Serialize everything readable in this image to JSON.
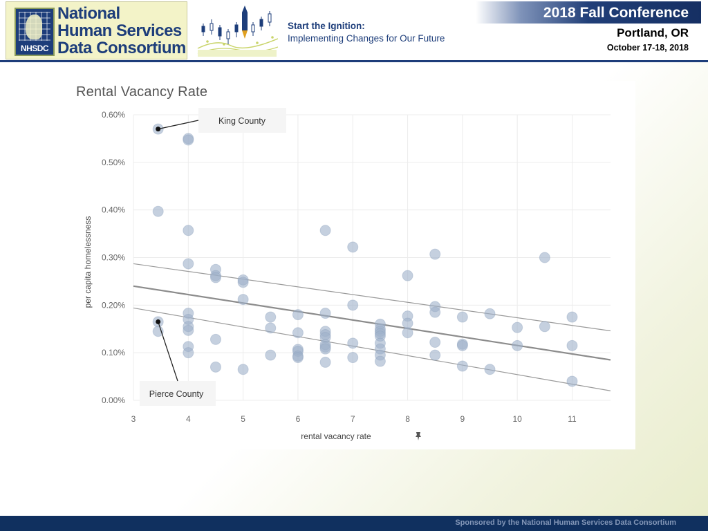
{
  "header": {
    "org_name_line1": "National",
    "org_name_line2": "Human Services",
    "org_name_line3": "Data Consortium",
    "org_abbr": "NHSDC",
    "theme_title": "Start the Ignition:",
    "theme_subtitle": "Implementing Changes for Our Future",
    "conference_title": "2018 Fall Conference",
    "conference_city": "Portland, OR",
    "conference_dates": "October 17-18, 2018"
  },
  "footer": {
    "sponsor_text": "Sponsored by the National Human Services Data Consortium"
  },
  "colors": {
    "brand_navy": "#1d3d7a",
    "logo_background": "#f3f3c8",
    "point_fill": "#9fb1c9",
    "trend_line": "#8c8c8c"
  },
  "chart_data": {
    "type": "scatter",
    "title": "Rental Vacancy Rate",
    "xlabel": "rental vacancy rate",
    "ylabel": "per capita homelessness",
    "x_ticks": [
      "3",
      "4",
      "5",
      "6",
      "7",
      "8",
      "9",
      "10",
      "11"
    ],
    "y_ticks": [
      "0.00%",
      "0.10%",
      "0.20%",
      "0.30%",
      "0.40%",
      "0.50%",
      "0.60%"
    ],
    "xlim": [
      3,
      11.7
    ],
    "ylim": [
      0,
      0.6
    ],
    "y_unit": "%",
    "grid": true,
    "annotations": [
      {
        "label": "King County",
        "x": 3.45,
        "y": 0.57
      },
      {
        "label": "Pierce County",
        "x": 3.45,
        "y": 0.165
      }
    ],
    "trend": {
      "line": [
        [
          3,
          0.24
        ],
        [
          11.7,
          0.085
        ]
      ],
      "upper_band": [
        [
          3,
          0.287
        ],
        [
          11.7,
          0.146
        ]
      ],
      "lower_band": [
        [
          3,
          0.194
        ],
        [
          11.7,
          0.02
        ]
      ]
    },
    "points": [
      {
        "x": 3.45,
        "y": 0.57
      },
      {
        "x": 3.45,
        "y": 0.397
      },
      {
        "x": 3.45,
        "y": 0.165
      },
      {
        "x": 3.45,
        "y": 0.145
      },
      {
        "x": 4,
        "y": 0.55
      },
      {
        "x": 4,
        "y": 0.547
      },
      {
        "x": 4,
        "y": 0.357
      },
      {
        "x": 4,
        "y": 0.287
      },
      {
        "x": 4,
        "y": 0.183
      },
      {
        "x": 4,
        "y": 0.17
      },
      {
        "x": 4,
        "y": 0.155
      },
      {
        "x": 4,
        "y": 0.147
      },
      {
        "x": 4,
        "y": 0.113
      },
      {
        "x": 4,
        "y": 0.1
      },
      {
        "x": 4.5,
        "y": 0.275
      },
      {
        "x": 4.5,
        "y": 0.262
      },
      {
        "x": 4.5,
        "y": 0.258
      },
      {
        "x": 4.5,
        "y": 0.128
      },
      {
        "x": 4.5,
        "y": 0.07
      },
      {
        "x": 5,
        "y": 0.253
      },
      {
        "x": 5,
        "y": 0.248
      },
      {
        "x": 5,
        "y": 0.212
      },
      {
        "x": 5,
        "y": 0.065
      },
      {
        "x": 5.5,
        "y": 0.175
      },
      {
        "x": 5.5,
        "y": 0.152
      },
      {
        "x": 5.5,
        "y": 0.095
      },
      {
        "x": 6,
        "y": 0.18
      },
      {
        "x": 6,
        "y": 0.142
      },
      {
        "x": 6,
        "y": 0.107
      },
      {
        "x": 6,
        "y": 0.103
      },
      {
        "x": 6,
        "y": 0.093
      },
      {
        "x": 6,
        "y": 0.09
      },
      {
        "x": 6.5,
        "y": 0.357
      },
      {
        "x": 6.5,
        "y": 0.183
      },
      {
        "x": 6.5,
        "y": 0.145
      },
      {
        "x": 6.5,
        "y": 0.138
      },
      {
        "x": 6.5,
        "y": 0.132
      },
      {
        "x": 6.5,
        "y": 0.117
      },
      {
        "x": 6.5,
        "y": 0.112
      },
      {
        "x": 6.5,
        "y": 0.108
      },
      {
        "x": 6.5,
        "y": 0.08
      },
      {
        "x": 7,
        "y": 0.322
      },
      {
        "x": 7,
        "y": 0.2
      },
      {
        "x": 7,
        "y": 0.12
      },
      {
        "x": 7,
        "y": 0.09
      },
      {
        "x": 7.5,
        "y": 0.16
      },
      {
        "x": 7.5,
        "y": 0.15
      },
      {
        "x": 7.5,
        "y": 0.145
      },
      {
        "x": 7.5,
        "y": 0.14
      },
      {
        "x": 7.5,
        "y": 0.135
      },
      {
        "x": 7.5,
        "y": 0.12
      },
      {
        "x": 7.5,
        "y": 0.108
      },
      {
        "x": 7.5,
        "y": 0.095
      },
      {
        "x": 7.5,
        "y": 0.082
      },
      {
        "x": 8,
        "y": 0.262
      },
      {
        "x": 8,
        "y": 0.177
      },
      {
        "x": 8,
        "y": 0.162
      },
      {
        "x": 8,
        "y": 0.142
      },
      {
        "x": 8.5,
        "y": 0.307
      },
      {
        "x": 8.5,
        "y": 0.197
      },
      {
        "x": 8.5,
        "y": 0.185
      },
      {
        "x": 8.5,
        "y": 0.122
      },
      {
        "x": 8.5,
        "y": 0.095
      },
      {
        "x": 9,
        "y": 0.175
      },
      {
        "x": 9,
        "y": 0.118
      },
      {
        "x": 9,
        "y": 0.115
      },
      {
        "x": 9,
        "y": 0.072
      },
      {
        "x": 9.5,
        "y": 0.182
      },
      {
        "x": 9.5,
        "y": 0.065
      },
      {
        "x": 10,
        "y": 0.153
      },
      {
        "x": 10,
        "y": 0.115
      },
      {
        "x": 10.5,
        "y": 0.3
      },
      {
        "x": 10.5,
        "y": 0.155
      },
      {
        "x": 11,
        "y": 0.175
      },
      {
        "x": 11,
        "y": 0.115
      },
      {
        "x": 11,
        "y": 0.04
      }
    ]
  }
}
